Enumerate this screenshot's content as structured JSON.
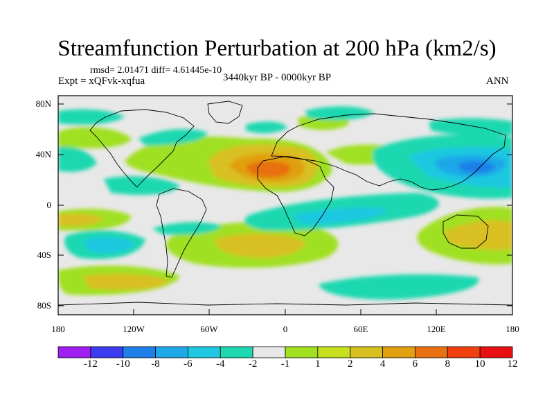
{
  "title": "Streamfunction Perturbation at 200 hPa (km2/s)",
  "stats_line": "rmsd= 2.01471 diff= 4.61445e-10",
  "experiment": "Expt = xQFvk-xqfua",
  "period": "3440kyr BP - 0000kyr BP",
  "season": "ANN",
  "lat_ticks": [
    "80N",
    "40N",
    "0",
    "40S",
    "80S"
  ],
  "lon_ticks": [
    "180",
    "120W",
    "60W",
    "0",
    "60E",
    "120E",
    "180"
  ],
  "colorbar": {
    "colors": [
      "#9f1ff0",
      "#3c3cf0",
      "#1f7fe8",
      "#1fa8e8",
      "#1fc8e0",
      "#1fd8b0",
      "#e8e8e8",
      "#a0e020",
      "#c8e020",
      "#d8c020",
      "#e0a010",
      "#e87010",
      "#f04010",
      "#e81010"
    ],
    "labels": [
      "-12",
      "-10",
      "-8",
      "-6",
      "-4",
      "-2",
      "-1",
      "1",
      "2",
      "4",
      "6",
      "8",
      "10",
      "12"
    ]
  }
}
